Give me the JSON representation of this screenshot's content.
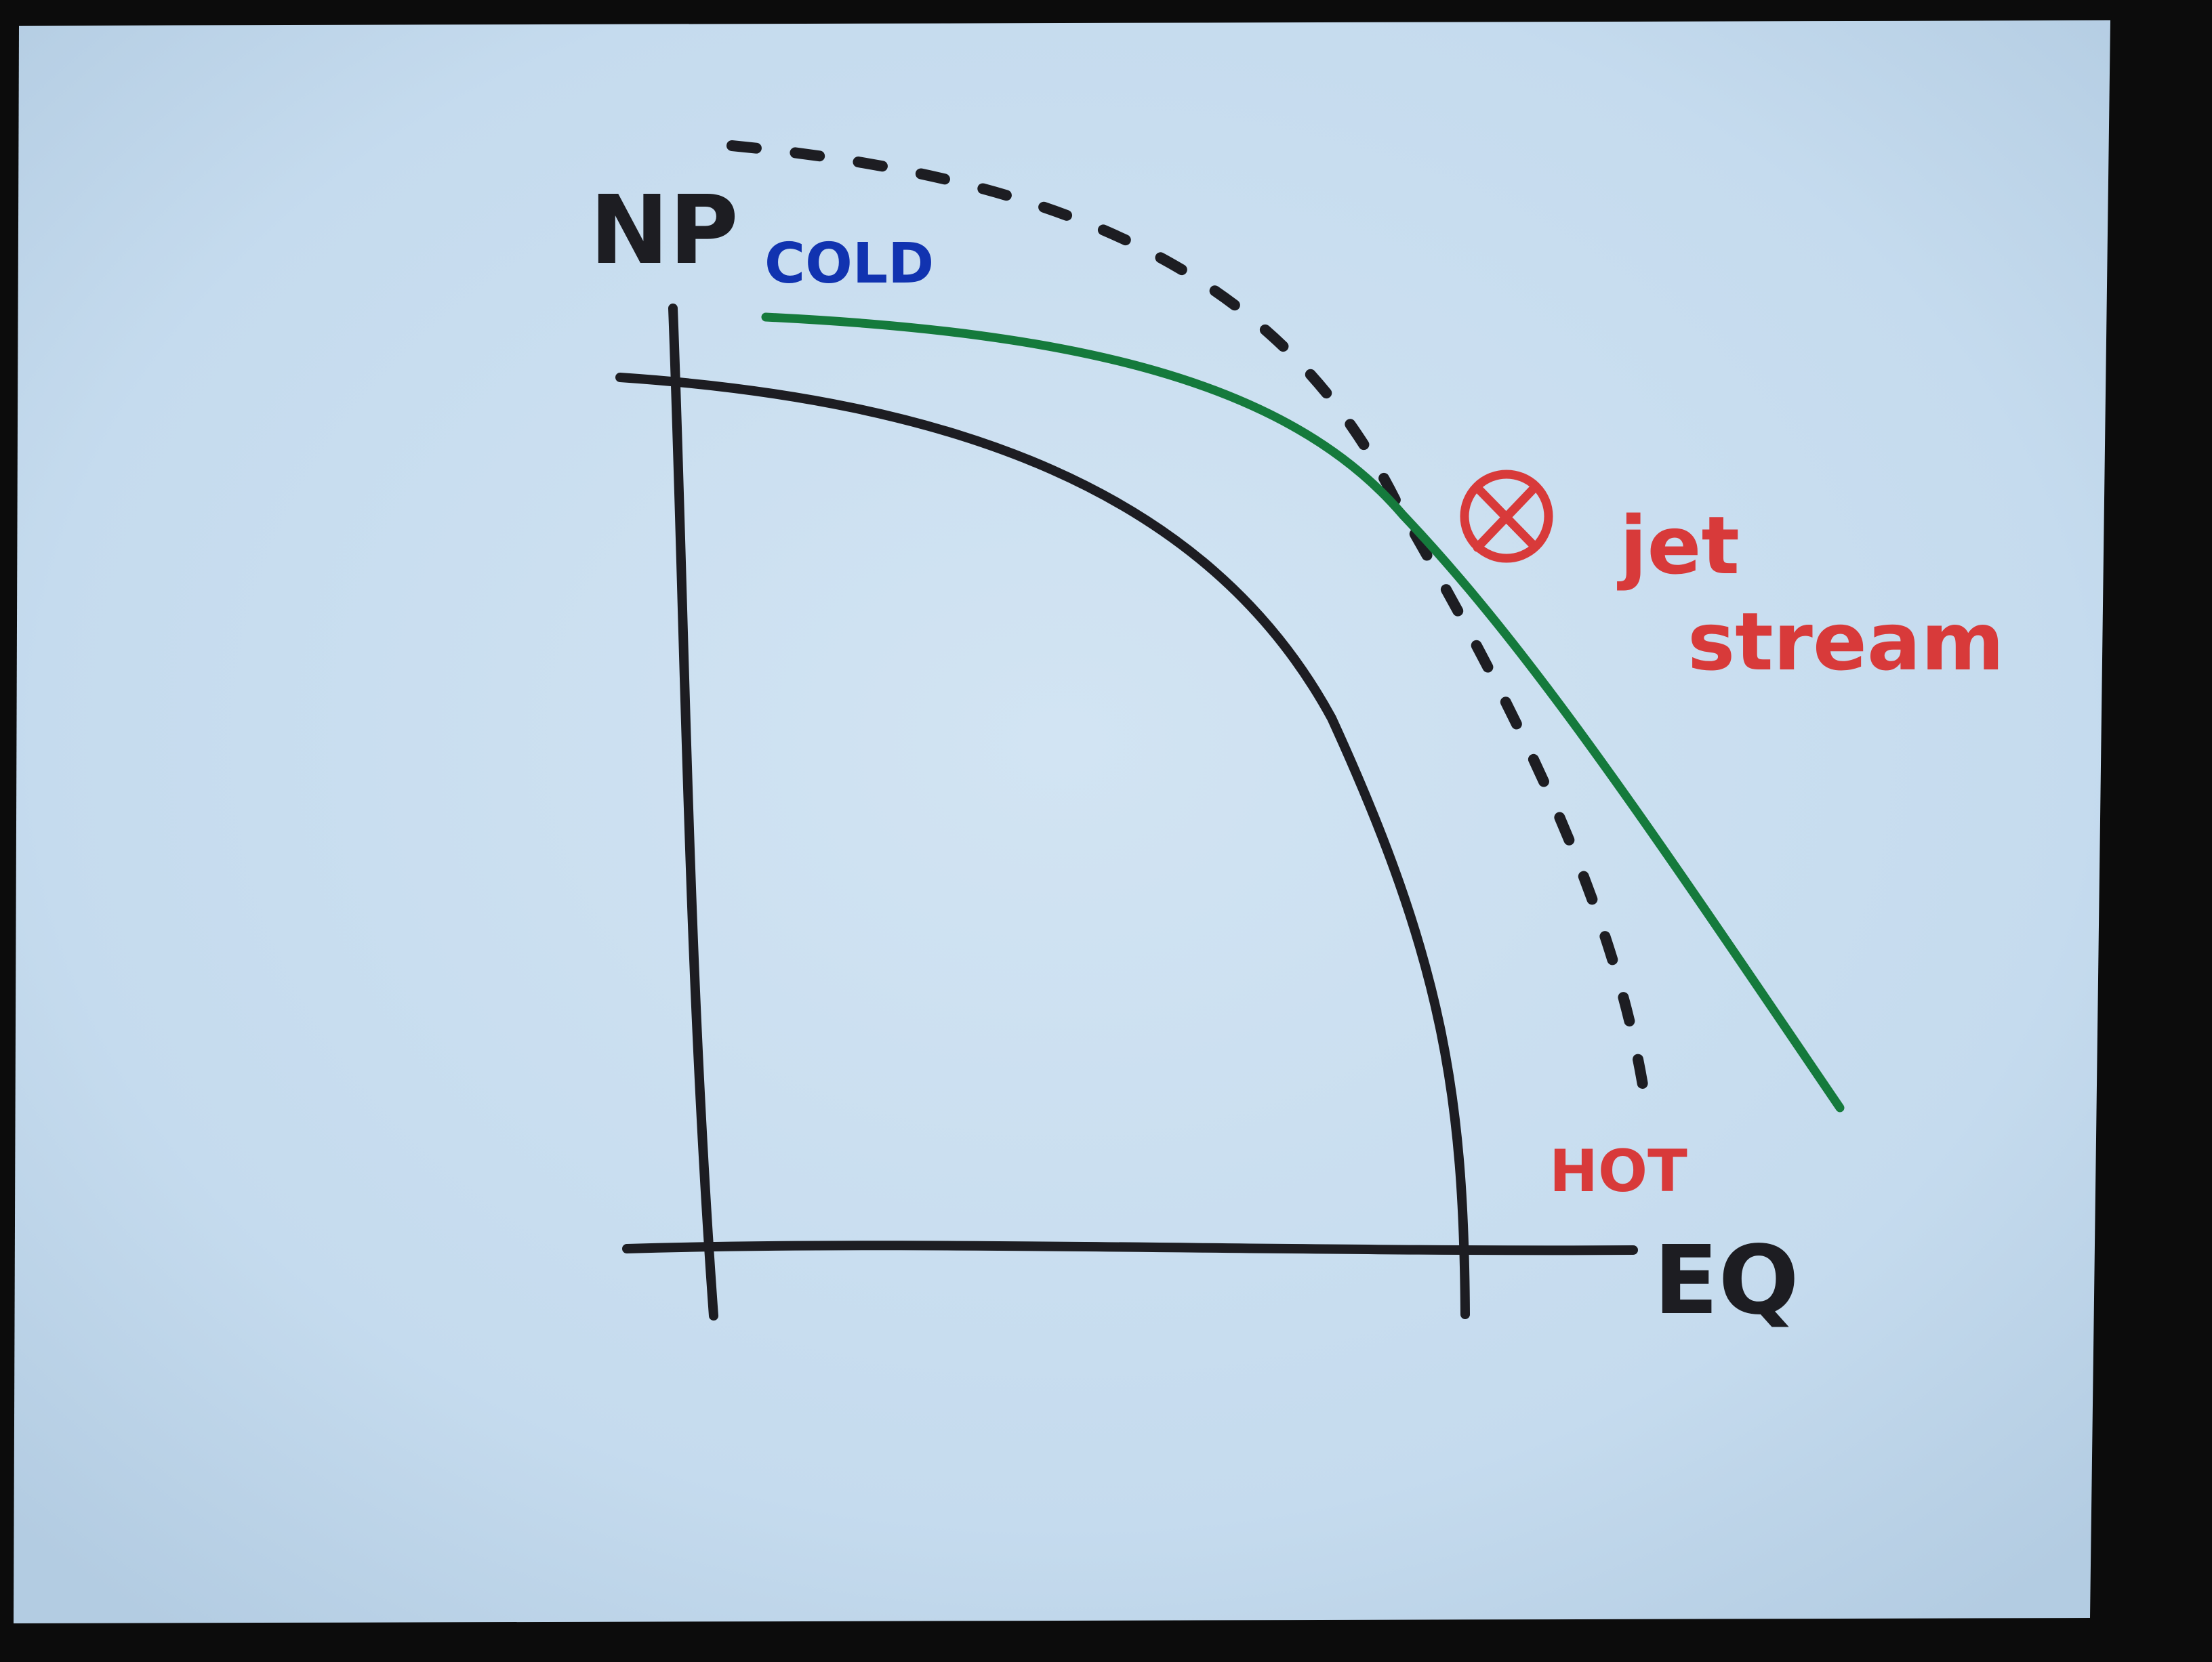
{
  "labels": {
    "north_pole": "NP",
    "equator": "EQ",
    "cold": "COLD",
    "hot": "HOT",
    "jet": "jet",
    "stream": "stream"
  },
  "colors": {
    "ink_black": "#1d1d22",
    "ink_green": "#157a3c",
    "ink_blue": "#1133b0",
    "ink_red": "#d83a3a",
    "paper": "#c8dcee",
    "background": "#0c0c0c"
  },
  "symbols": {
    "jet_direction": "into-page-circle-x-icon"
  }
}
